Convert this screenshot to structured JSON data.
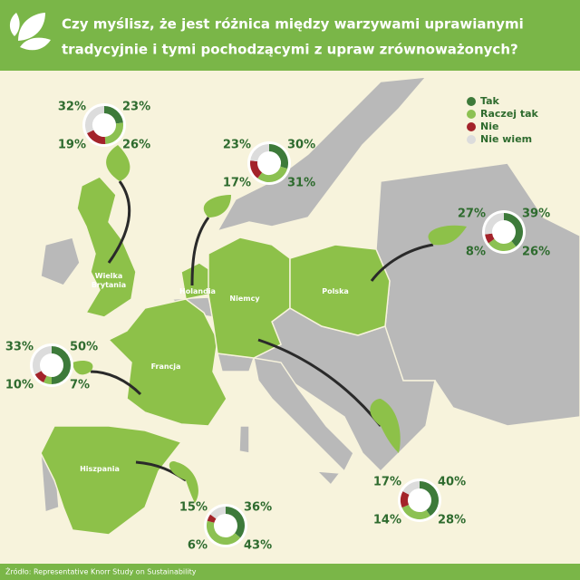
{
  "header": {
    "title_lines": [
      "Czy myślisz, że jest różnica między warzywami uprawianymi",
      "tradycyjnie i tymi pochodzącymi z upraw zrównoważonych?"
    ]
  },
  "legend": [
    {
      "name": "Tak",
      "color": "#3d7a3a"
    },
    {
      "name": "Raczej tak",
      "color": "#8cc152"
    },
    {
      "name": "Nie",
      "color": "#a3232a"
    },
    {
      "name": "Nie wiem",
      "color": "#dcdcdc"
    }
  ],
  "countries": [
    {
      "name": "Wielka Brytania",
      "values": [
        23,
        26,
        19,
        32
      ],
      "value_labels": [
        "23%",
        "26%",
        "19%",
        "32%"
      ]
    },
    {
      "name": "Holandia",
      "values": [
        30,
        31,
        17,
        23
      ],
      "value_labels": [
        "30%",
        "31%",
        "17%",
        "23%"
      ]
    },
    {
      "name": "Polska",
      "values": [
        39,
        26,
        8,
        27
      ],
      "value_labels": [
        "39%",
        "26%",
        "8%",
        "27%"
      ]
    },
    {
      "name": "Francja",
      "values": [
        50,
        7,
        10,
        33
      ],
      "value_labels": [
        "50%",
        "7%",
        "10%",
        "33%"
      ]
    },
    {
      "name": "Hiszpania",
      "values": [
        36,
        43,
        6,
        15
      ],
      "value_labels": [
        "36%",
        "43%",
        "6%",
        "15%"
      ]
    },
    {
      "name": "Niemcy",
      "values": [
        40,
        28,
        14,
        17
      ],
      "value_labels": [
        "40%",
        "28%",
        "14%",
        "17%"
      ]
    }
  ],
  "source": "Źródło: Representative Knorr Study on Sustainability"
}
